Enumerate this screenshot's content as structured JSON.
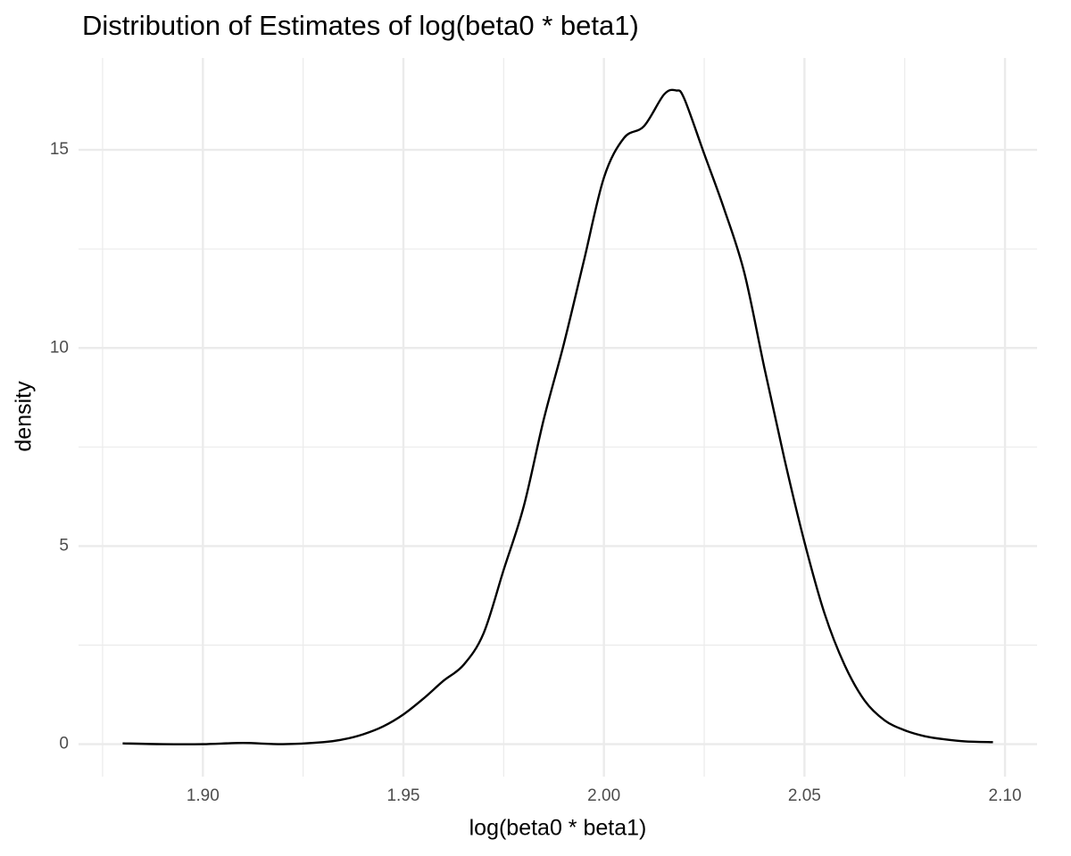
{
  "chart_data": {
    "type": "line",
    "title": "Distribution of Estimates of log(beta0 * beta1)",
    "x_label": "log(beta0 * beta1)",
    "y_label": "density",
    "x": [
      1.88,
      1.89,
      1.9,
      1.91,
      1.92,
      1.93,
      1.935,
      1.94,
      1.945,
      1.95,
      1.955,
      1.96,
      1.965,
      1.97,
      1.975,
      1.98,
      1.985,
      1.99,
      1.995,
      2.0,
      2.005,
      2.01,
      2.015,
      2.018,
      2.02,
      2.025,
      2.03,
      2.035,
      2.04,
      2.045,
      2.05,
      2.055,
      2.06,
      2.065,
      2.07,
      2.075,
      2.08,
      2.085,
      2.09,
      2.097
    ],
    "series": [
      {
        "name": "density",
        "color": "#000000",
        "values": [
          0.02,
          0.0,
          0.0,
          0.03,
          0.0,
          0.05,
          0.12,
          0.25,
          0.45,
          0.75,
          1.15,
          1.6,
          2.0,
          2.8,
          4.4,
          6.0,
          8.2,
          10.1,
          12.2,
          14.3,
          15.3,
          15.6,
          16.4,
          16.5,
          16.3,
          14.9,
          13.5,
          11.9,
          9.5,
          7.2,
          5.1,
          3.3,
          2.0,
          1.1,
          0.6,
          0.35,
          0.2,
          0.12,
          0.07,
          0.05
        ]
      }
    ],
    "xlim": [
      1.869,
      2.108
    ],
    "ylim": [
      -0.82,
      17.32
    ],
    "xticks": [
      {
        "value": 1.9,
        "label": "1.90"
      },
      1.95,
      {
        "value": 2.0,
        "label": "2.00"
      },
      2.05,
      {
        "value": 2.1,
        "label": "2.10"
      }
    ],
    "yticks": [
      0,
      5,
      10,
      15
    ],
    "x_minor_grid": [
      1.875,
      1.925,
      1.975,
      2.025,
      2.075
    ],
    "y_minor_grid": [
      2.5,
      7.5,
      12.5
    ],
    "grid": true
  }
}
